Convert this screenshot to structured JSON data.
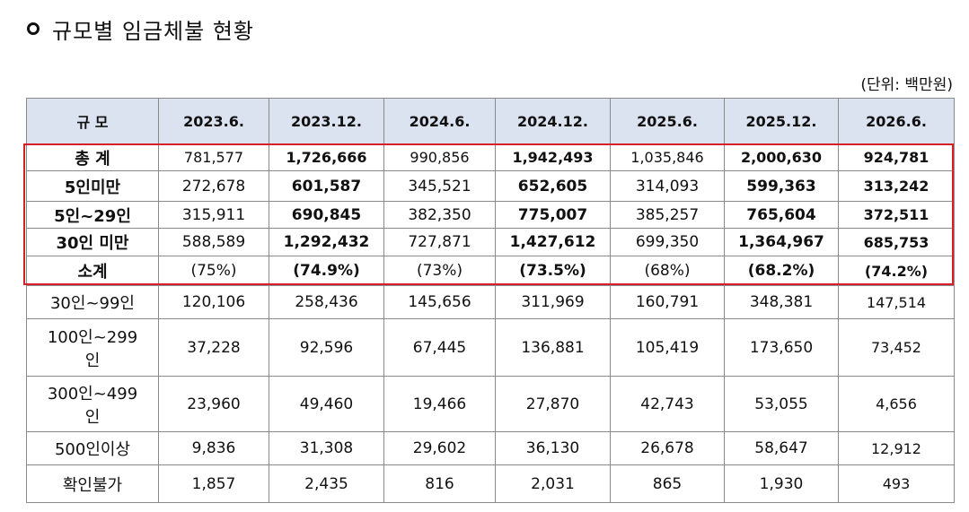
{
  "title": "규모별 임금체불 현황",
  "unit": "(단위: 백만원)",
  "table": {
    "header": [
      "규 모",
      "2023.6.",
      "2023.12.",
      "2024.6.",
      "2024.12.",
      "2025.6.",
      "2025.12.",
      "2026.6."
    ],
    "rows": [
      {
        "label": "총  계",
        "values": [
          "781,577",
          "1,726,666",
          "990,856",
          "1,942,493",
          "1,035,846",
          "2,000,630",
          "924,781"
        ]
      },
      {
        "label": "5인미만",
        "values": [
          "272,678",
          "601,587",
          "345,521",
          "652,605",
          "314,093",
          "599,363",
          "313,242"
        ]
      },
      {
        "label": "5인~29인",
        "values": [
          "315,911",
          "690,845",
          "382,350",
          "775,007",
          "385,257",
          "765,604",
          "372,511"
        ]
      },
      {
        "label": "30인 미만",
        "label2": "소계",
        "values": [
          "588,589",
          "1,292,432",
          "727,871",
          "1,427,612",
          "699,350",
          "1,364,967",
          "685,753"
        ],
        "shares": [
          "(75%)",
          "(74.9%)",
          "(73%)",
          "(73.5%)",
          "(68%)",
          "(68.2%)",
          "(74.2%)"
        ]
      },
      {
        "label": "30인~99인",
        "values": [
          "120,106",
          "258,436",
          "145,656",
          "311,969",
          "160,791",
          "348,381",
          "147,514"
        ]
      },
      {
        "label": "100인~299",
        "label2": "인",
        "values": [
          "37,228",
          "92,596",
          "67,445",
          "136,881",
          "105,419",
          "173,650",
          "73,452"
        ]
      },
      {
        "label": "300인~499",
        "label2": "인",
        "values": [
          "23,960",
          "49,460",
          "19,466",
          "27,870",
          "42,743",
          "53,055",
          "4,656"
        ]
      },
      {
        "label": "500인이상",
        "values": [
          "9,836",
          "31,308",
          "29,602",
          "36,130",
          "26,678",
          "58,647",
          "12,912"
        ]
      },
      {
        "label": "확인불가",
        "values": [
          "1,857",
          "2,435",
          "816",
          "2,031",
          "865",
          "1,930",
          "493"
        ]
      }
    ]
  }
}
